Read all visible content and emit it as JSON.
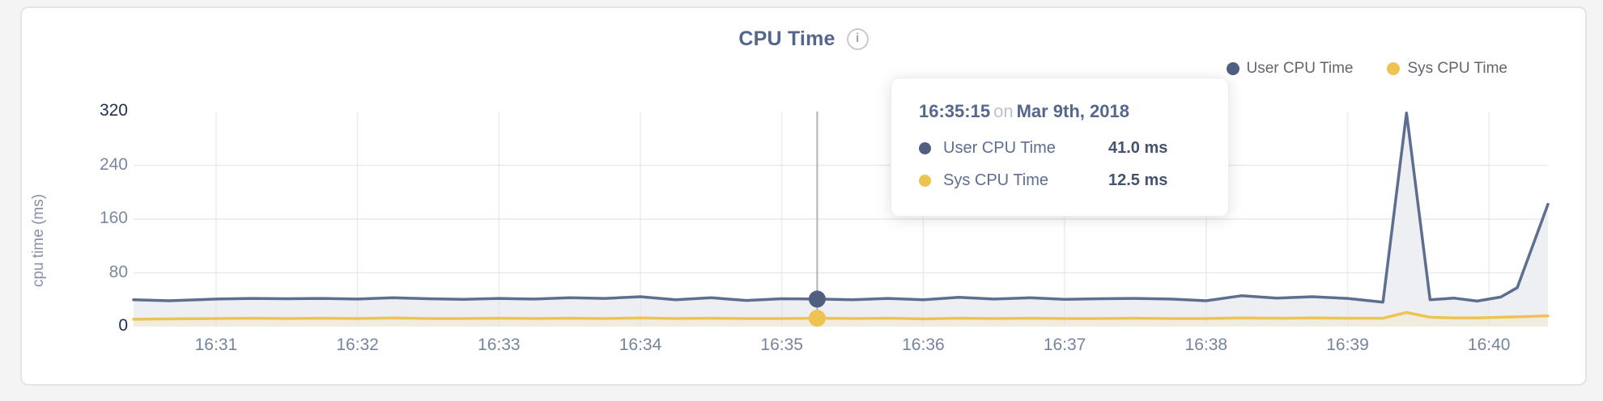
{
  "header": {
    "title": "CPU Time",
    "info_icon_glyph": "i"
  },
  "legend": {
    "items": [
      {
        "label": "User CPU Time",
        "color": "#505e80"
      },
      {
        "label": "Sys CPU Time",
        "color": "#eec352"
      }
    ]
  },
  "tooltip": {
    "time": "16:35:15",
    "connector": "on",
    "date": "Mar 9th, 2018",
    "rows": [
      {
        "label": "User CPU Time",
        "value": "41.0 ms",
        "color": "#505e80"
      },
      {
        "label": "Sys CPU Time",
        "value": "12.5 ms",
        "color": "#eec352"
      }
    ]
  },
  "chart_data": {
    "type": "area",
    "title": "CPU Time",
    "date": "Mar 9th, 2018",
    "xlabel": "",
    "ylabel": "cpu time (ms)",
    "ylim": [
      0,
      320
    ],
    "y_ticks": [
      0,
      80,
      160,
      240,
      320
    ],
    "x_ticks": [
      "16:31",
      "16:32",
      "16:33",
      "16:34",
      "16:35",
      "16:36",
      "16:37",
      "16:38",
      "16:39",
      "16:40"
    ],
    "x_domain": [
      "16:30:25",
      "16:40:25"
    ],
    "grid": true,
    "legend_position": "top-right",
    "hover": {
      "time": "16:35:15",
      "line_color": "#b0b3b8"
    },
    "series": [
      {
        "name": "User CPU Time",
        "unit": "ms",
        "color": "#5d6e90",
        "fill": "#edeff3",
        "dot_color": "#505e80",
        "hover_value": 41.0,
        "points": [
          [
            "16:30:25",
            40
          ],
          [
            "16:30:40",
            38.5
          ],
          [
            "16:31:00",
            41
          ],
          [
            "16:31:15",
            42
          ],
          [
            "16:31:30",
            41.5
          ],
          [
            "16:31:45",
            42
          ],
          [
            "16:32:00",
            41
          ],
          [
            "16:32:15",
            43
          ],
          [
            "16:32:30",
            41.5
          ],
          [
            "16:32:45",
            40.5
          ],
          [
            "16:33:00",
            42
          ],
          [
            "16:33:15",
            41
          ],
          [
            "16:33:30",
            43
          ],
          [
            "16:33:45",
            42
          ],
          [
            "16:34:00",
            44.5
          ],
          [
            "16:34:15",
            40
          ],
          [
            "16:34:30",
            43
          ],
          [
            "16:34:45",
            39
          ],
          [
            "16:35:00",
            41.5
          ],
          [
            "16:35:15",
            41
          ],
          [
            "16:35:30",
            40
          ],
          [
            "16:35:45",
            42
          ],
          [
            "16:36:00",
            40
          ],
          [
            "16:36:15",
            43.5
          ],
          [
            "16:36:30",
            41
          ],
          [
            "16:36:45",
            43
          ],
          [
            "16:37:00",
            40.5
          ],
          [
            "16:37:15",
            41.5
          ],
          [
            "16:37:30",
            42
          ],
          [
            "16:37:45",
            41
          ],
          [
            "16:38:00",
            38.5
          ],
          [
            "16:38:15",
            46
          ],
          [
            "16:38:30",
            42.5
          ],
          [
            "16:38:45",
            44.5
          ],
          [
            "16:39:00",
            42
          ],
          [
            "16:39:15",
            36.5
          ],
          [
            "16:39:25",
            318
          ],
          [
            "16:39:35",
            40
          ],
          [
            "16:39:45",
            42.5
          ],
          [
            "16:39:55",
            38
          ],
          [
            "16:40:05",
            44
          ],
          [
            "16:40:12",
            58
          ],
          [
            "16:40:25",
            182
          ]
        ]
      },
      {
        "name": "Sys CPU Time",
        "unit": "ms",
        "color": "#eec352",
        "fill": "#f0ecdf",
        "dot_color": "#eec352",
        "hover_value": 12.5,
        "points": [
          [
            "16:30:25",
            11
          ],
          [
            "16:30:40",
            11.5
          ],
          [
            "16:31:00",
            12
          ],
          [
            "16:31:15",
            12.5
          ],
          [
            "16:31:30",
            12
          ],
          [
            "16:31:45",
            12.5
          ],
          [
            "16:32:00",
            12
          ],
          [
            "16:32:15",
            13
          ],
          [
            "16:32:30",
            12
          ],
          [
            "16:32:45",
            12
          ],
          [
            "16:33:00",
            12.5
          ],
          [
            "16:33:15",
            12
          ],
          [
            "16:33:30",
            12.5
          ],
          [
            "16:33:45",
            12
          ],
          [
            "16:34:00",
            13
          ],
          [
            "16:34:15",
            12
          ],
          [
            "16:34:30",
            12.5
          ],
          [
            "16:34:45",
            12
          ],
          [
            "16:35:00",
            12
          ],
          [
            "16:35:15",
            12.5
          ],
          [
            "16:35:30",
            12
          ],
          [
            "16:35:45",
            12.5
          ],
          [
            "16:36:00",
            11.5
          ],
          [
            "16:36:15",
            12.5
          ],
          [
            "16:36:30",
            12
          ],
          [
            "16:36:45",
            12.5
          ],
          [
            "16:37:00",
            12
          ],
          [
            "16:37:15",
            12
          ],
          [
            "16:37:30",
            12.5
          ],
          [
            "16:37:45",
            12
          ],
          [
            "16:38:00",
            12
          ],
          [
            "16:38:15",
            13
          ],
          [
            "16:38:30",
            12.5
          ],
          [
            "16:38:45",
            13
          ],
          [
            "16:39:00",
            12.5
          ],
          [
            "16:39:15",
            12.5
          ],
          [
            "16:39:25",
            21
          ],
          [
            "16:39:35",
            14
          ],
          [
            "16:39:45",
            13
          ],
          [
            "16:39:55",
            13
          ],
          [
            "16:40:05",
            14
          ],
          [
            "16:40:12",
            14.5
          ],
          [
            "16:40:25",
            16
          ]
        ]
      }
    ],
    "colors": {
      "grid_h": "#e9e9e9",
      "grid_v": "#e2e2e2",
      "y_tick": "#7b89a0",
      "y_tick_extreme": "#222f4e",
      "x_tick": "#76849c",
      "axis_title": "#8691a6",
      "title": "#54668e"
    }
  }
}
